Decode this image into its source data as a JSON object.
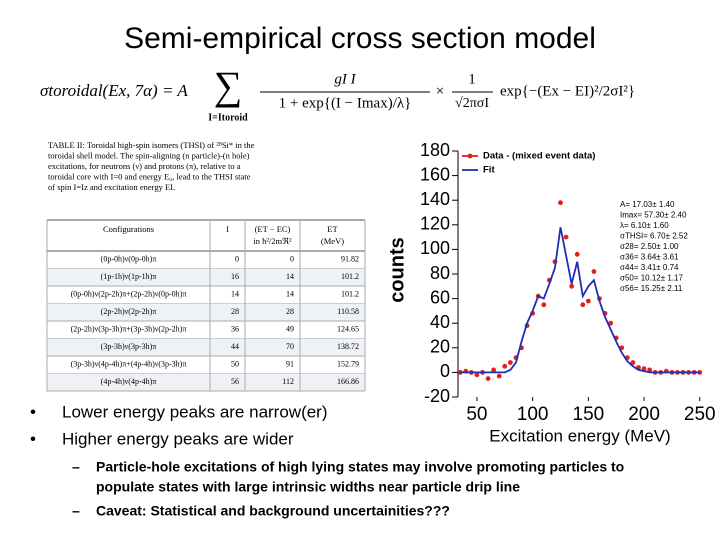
{
  "slide": {
    "title": "Semi-empirical cross section model",
    "formula": {
      "lhs": "σtoroidal(Ex, 7α) = A",
      "sum": "∑",
      "sum_index": "I=Itoroid",
      "frac1_num": "gI I",
      "frac1_den": "1 + exp{(I − Imax)/λ}",
      "times": "×",
      "frac2_num": "1",
      "frac2_den": "√2πσI",
      "exp": "exp{−(Ex − EI)²/2σI²}"
    },
    "table": {
      "caption_lines": [
        "TABLE II: Toroidal high-spin isomers (THSI) of ²⁸Si* in the",
        "toroidal shell model. The spin-aligning (n particle)-(n hole)",
        "excitations, for neutrons (ν) and protons (π), relative to a",
        "toroidal core with I=0 and energy E₀, lead to the THSI state",
        "of spin I=Iz and excitation energy EI."
      ],
      "header": [
        "Configurations",
        "I",
        "(ET − EC)",
        "ET"
      ],
      "header_sub": [
        "in ħ²/2mℜ²",
        "(MeV)"
      ],
      "rows": [
        [
          "(0p-0h)ν(0p-0h)π",
          "0",
          "0",
          "91.82"
        ],
        [
          "(1p-1h)ν(1p-1h)π",
          "16",
          "14",
          "101.2"
        ],
        [
          "(0p-0h)ν(2p-2h)π+(2p-2h)ν(0p-0h)π",
          "14",
          "14",
          "101.2"
        ],
        [
          "(2p-2h)ν(2p-2h)π",
          "28",
          "28",
          "110.58"
        ],
        [
          "(2p-2h)ν(3p-3h)π+(3p-3h)ν(2p-2h)π",
          "36",
          "49",
          "124.65"
        ],
        [
          "(3p-3h)ν(3p-3h)π",
          "44",
          "70",
          "138.72"
        ],
        [
          "(3p-3h)ν(4p-4h)π+(4p-4h)ν(3p-3h)π",
          "50",
          "91",
          "152.79"
        ],
        [
          "(4p-4h)ν(4p-4h)π",
          "56",
          "112",
          "166.86"
        ]
      ]
    },
    "bullets": [
      "Lower energy peaks are narrow(er)",
      "Higher energy peaks are wider"
    ],
    "subbullets": [
      [
        "Particle-hole excitations of high lying states may involve promoting particles to",
        "populate states with large intrinsic widths near particle drip line"
      ],
      [
        "Caveat: Statistical and background uncertainities???"
      ]
    ]
  },
  "chart_data": {
    "type": "line",
    "x_label": "Excitation energy (MeV)",
    "y_label": "counts",
    "xlim": [
      33,
      252
    ],
    "xticks": [
      50,
      100,
      150,
      200,
      250
    ],
    "ylim": [
      -20,
      180
    ],
    "yticks": [
      -20,
      0,
      20,
      40,
      60,
      80,
      100,
      120,
      140,
      160,
      180
    ],
    "x": [
      35,
      40,
      45,
      50,
      55,
      60,
      65,
      70,
      75,
      80,
      85,
      90,
      95,
      100,
      105,
      110,
      115,
      120,
      125,
      130,
      135,
      140,
      145,
      150,
      155,
      160,
      165,
      170,
      175,
      180,
      185,
      190,
      195,
      200,
      205,
      210,
      215,
      220,
      225,
      230,
      235,
      240,
      245,
      250
    ],
    "series": [
      {
        "name": "Data - (mixed event data)",
        "color": "#e0201b",
        "style": "markers",
        "values": [
          0,
          1,
          0,
          -2,
          0,
          -5,
          2,
          -3,
          5,
          8,
          12,
          20,
          38,
          48,
          62,
          55,
          75,
          90,
          138,
          110,
          70,
          96,
          55,
          58,
          82,
          60,
          48,
          40,
          28,
          20,
          12,
          8,
          4,
          3,
          2,
          0,
          0,
          1,
          0,
          0,
          0,
          0,
          0,
          0
        ]
      },
      {
        "name": "Fit",
        "color": "#1f2fb4",
        "style": "line",
        "values": [
          0,
          0,
          0,
          0,
          0,
          0,
          0,
          0,
          0,
          2,
          8,
          25,
          40,
          50,
          62,
          60,
          72,
          85,
          118,
          95,
          72,
          90,
          62,
          70,
          75,
          58,
          45,
          35,
          25,
          16,
          9,
          5,
          2,
          1,
          0,
          0,
          0,
          0,
          0,
          0,
          0,
          0,
          0,
          0
        ]
      }
    ],
    "annotations": [
      "A= 17.03± 1.40",
      "Imax= 57.30± 2.40",
      "λ= 6.10± 1.60",
      "σTHSI= 6.70± 2.52",
      "σ28= 2.50± 1.00",
      "σ36= 3.64± 3.61",
      "σ44= 3.41± 0.74",
      "σ50= 10.12± 1.17",
      "σ56= 15.25± 2.11"
    ]
  }
}
